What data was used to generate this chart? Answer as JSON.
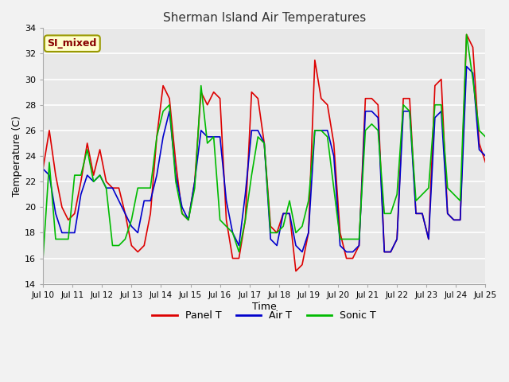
{
  "title": "Sherman Island Air Temperatures",
  "xlabel": "Time",
  "ylabel": "Temperature (C)",
  "ylim": [
    14,
    34
  ],
  "xlim": [
    0,
    15
  ],
  "background_color": "#e8e8e8",
  "figure_color": "#f2f2f2",
  "annotation_text": "SI_mixed",
  "annotation_bg": "#ffffcc",
  "annotation_border": "#999900",
  "annotation_text_color": "#880000",
  "line_colors": {
    "panel": "#dd0000",
    "air": "#0000cc",
    "sonic": "#00bb00"
  },
  "line_width": 1.2,
  "xtick_labels": [
    "Jul 10",
    "Jul 11",
    "Jul 12",
    "Jul 13",
    "Jul 14",
    "Jul 15",
    "Jul 16",
    "Jul 17",
    "Jul 18",
    "Jul 19",
    "Jul 20",
    "Jul 21",
    "Jul 22",
    "Jul 23",
    "Jul 24",
    "Jul 25"
  ],
  "xtick_positions": [
    0,
    1,
    2,
    3,
    4,
    5,
    6,
    7,
    8,
    9,
    10,
    11,
    12,
    13,
    14,
    15
  ],
  "ytick_positions": [
    14,
    16,
    18,
    20,
    22,
    24,
    26,
    28,
    30,
    32,
    34
  ],
  "panel_t": [
    23.0,
    26.0,
    22.5,
    20.0,
    19.0,
    19.5,
    22.0,
    25.0,
    22.5,
    24.5,
    22.0,
    21.5,
    21.5,
    19.5,
    17.0,
    16.5,
    17.0,
    19.5,
    25.5,
    29.5,
    28.5,
    23.5,
    19.5,
    19.0,
    22.0,
    29.0,
    28.0,
    29.0,
    28.5,
    19.0,
    16.0,
    16.0,
    19.0,
    29.0,
    28.5,
    25.0,
    18.5,
    18.0,
    19.5,
    19.5,
    15.0,
    15.5,
    18.0,
    31.5,
    28.5,
    28.0,
    25.0,
    18.0,
    16.0,
    16.0,
    17.0,
    28.5,
    28.5,
    28.0,
    16.5,
    16.5,
    17.5,
    28.5,
    28.5,
    19.5,
    19.5,
    17.5,
    29.5,
    30.0,
    19.5,
    19.0,
    19.0,
    33.5,
    32.5,
    25.0,
    23.5
  ],
  "air_t": [
    23.0,
    22.5,
    19.5,
    18.0,
    18.0,
    18.0,
    21.0,
    22.5,
    22.0,
    22.5,
    21.5,
    21.5,
    20.5,
    19.5,
    18.5,
    18.0,
    20.5,
    20.5,
    22.5,
    25.5,
    27.5,
    22.5,
    20.0,
    19.0,
    22.0,
    26.0,
    25.5,
    25.5,
    25.5,
    20.5,
    18.0,
    17.0,
    21.0,
    26.0,
    26.0,
    25.0,
    17.5,
    17.0,
    19.5,
    19.5,
    17.0,
    16.5,
    18.0,
    26.0,
    26.0,
    26.0,
    24.0,
    17.0,
    16.5,
    16.5,
    17.0,
    27.5,
    27.5,
    27.0,
    16.5,
    16.5,
    17.5,
    27.5,
    27.5,
    19.5,
    19.5,
    17.5,
    27.0,
    27.5,
    19.5,
    19.0,
    19.0,
    31.0,
    30.5,
    24.5,
    24.0
  ],
  "sonic_t": [
    16.0,
    23.5,
    17.5,
    17.5,
    17.5,
    22.5,
    22.5,
    24.5,
    22.0,
    22.5,
    21.5,
    17.0,
    17.0,
    17.5,
    19.0,
    21.5,
    21.5,
    21.5,
    25.5,
    27.5,
    28.0,
    22.0,
    19.5,
    19.0,
    21.5,
    29.5,
    25.0,
    25.5,
    19.0,
    18.5,
    18.0,
    16.5,
    19.0,
    22.5,
    25.5,
    25.0,
    18.0,
    18.0,
    18.5,
    20.5,
    18.0,
    18.5,
    20.5,
    26.0,
    26.0,
    25.5,
    21.5,
    17.5,
    17.5,
    17.5,
    17.5,
    26.0,
    26.5,
    26.0,
    19.5,
    19.5,
    21.0,
    28.0,
    27.5,
    20.5,
    21.0,
    21.5,
    28.0,
    28.0,
    21.5,
    21.0,
    20.5,
    33.5,
    30.0,
    26.0,
    25.5
  ]
}
